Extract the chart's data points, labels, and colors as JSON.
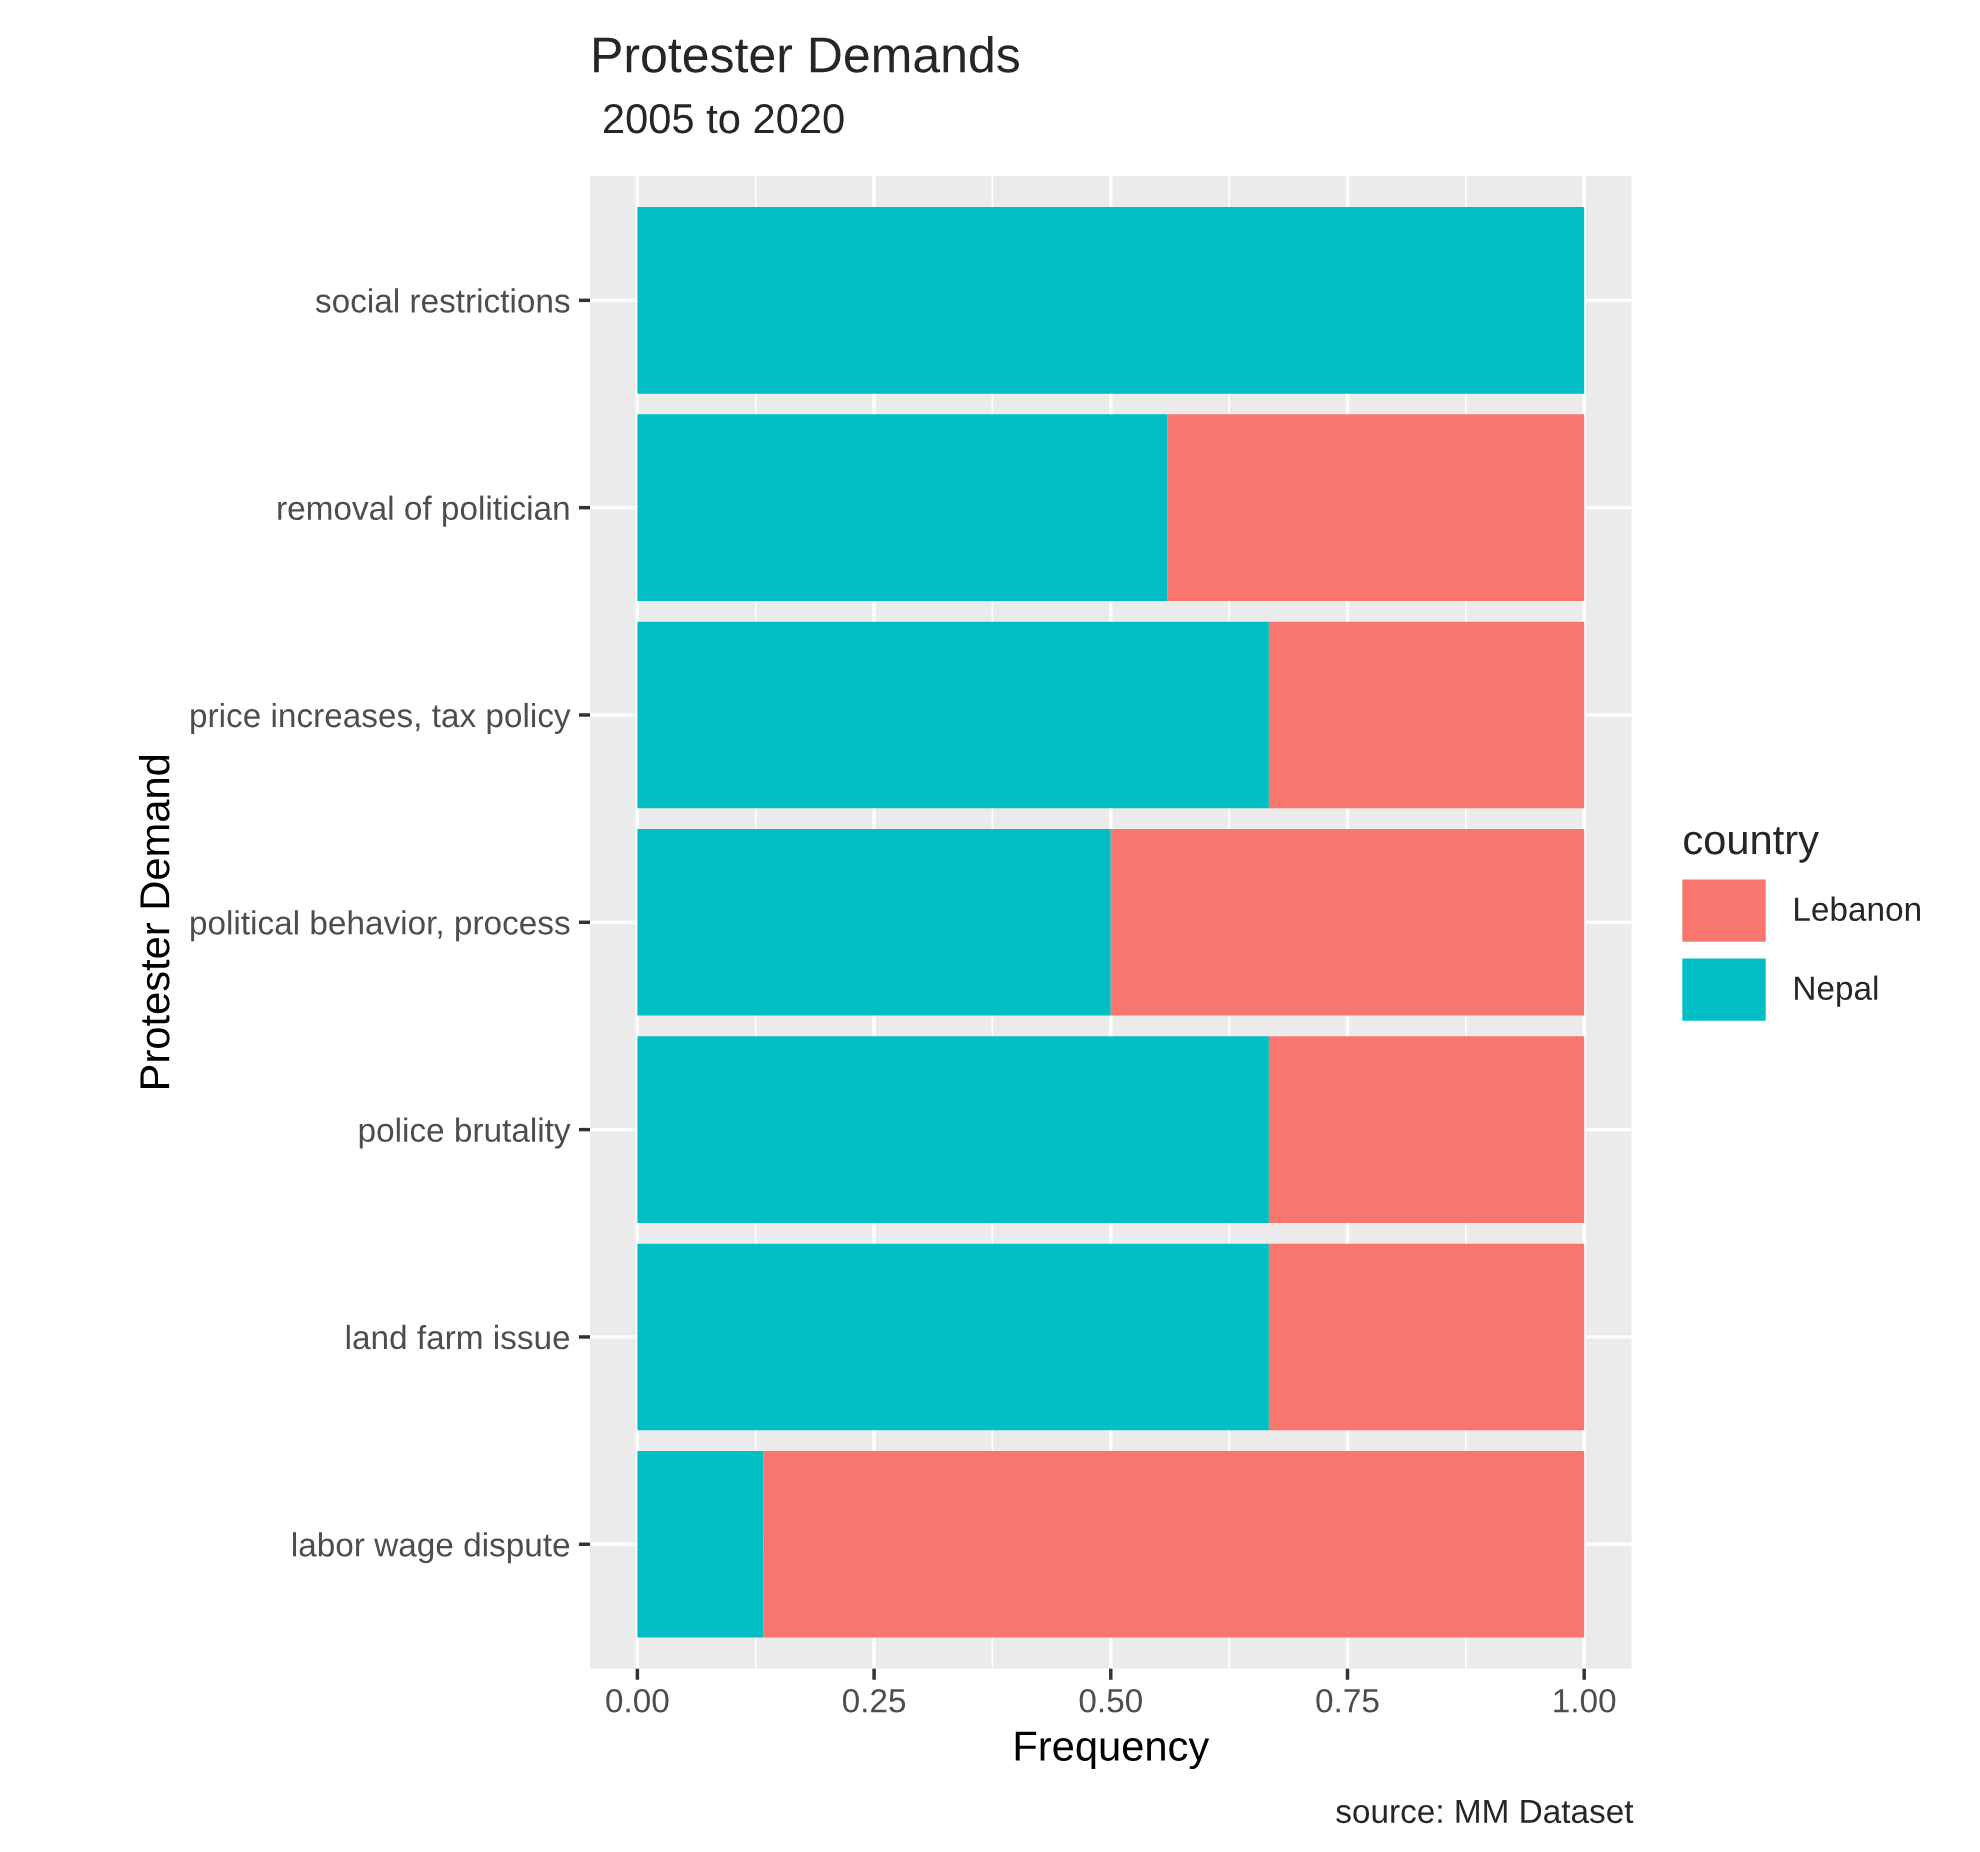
{
  "chart_data": {
    "type": "bar",
    "orientation": "horizontal",
    "stacked": true,
    "title": "Protester Demands",
    "subtitle": "2005 to 2020",
    "xlabel": "Frequency",
    "ylabel": "Protester Demand",
    "legend_title": "country",
    "categories": [
      "social restrictions",
      "removal of politician",
      "price increases, tax policy",
      "political behavior, process",
      "police brutality",
      "land farm issue",
      "labor wage dispute"
    ],
    "series": [
      {
        "name": "Nepal",
        "color": "#00bfc4",
        "values": [
          1.0,
          0.56,
          0.667,
          0.5,
          0.667,
          0.667,
          0.133
        ]
      },
      {
        "name": "Lebanon",
        "color": "#f8766d",
        "values": [
          0.0,
          0.44,
          0.333,
          0.5,
          0.333,
          0.333,
          0.867
        ]
      }
    ],
    "xlim": [
      -0.05,
      1.05
    ],
    "xticks": [
      {
        "value": 0,
        "label": "0.00"
      },
      {
        "value": 0.25,
        "label": "0.25"
      },
      {
        "value": 0.5,
        "label": "0.50"
      },
      {
        "value": 0.75,
        "label": "0.75"
      },
      {
        "value": 1,
        "label": "1.00"
      }
    ],
    "grid": true,
    "legend": "right",
    "annotations": [
      "source: MM Dataset"
    ]
  }
}
